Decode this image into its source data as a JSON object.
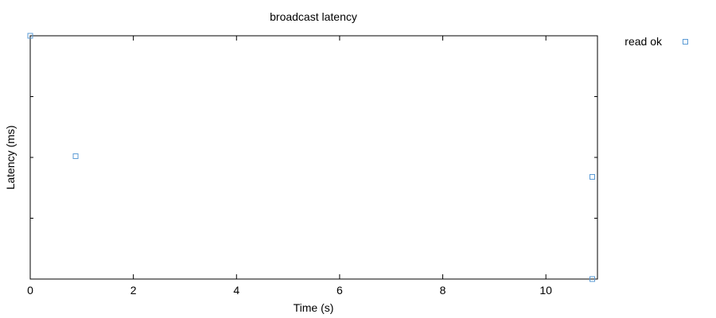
{
  "chart_data": {
    "type": "scatter",
    "title": "broadcast latency",
    "xlabel": "Time (s)",
    "ylabel": "Latency (ms)",
    "xlim": [
      0,
      11
    ],
    "ylim": [
      0,
      1
    ],
    "x_ticks": [
      0,
      2,
      4,
      6,
      8,
      10
    ],
    "y_ticks": [
      0,
      0.25,
      0.5,
      0.75,
      1.0
    ],
    "y_tick_labels_shown": false,
    "grid": false,
    "legend_placement": "outside-top-right",
    "series": [
      {
        "name": "read ok",
        "color": "#5b9bd5",
        "marker": "open-square",
        "points": [
          {
            "x": 0.0,
            "y": 1.0
          },
          {
            "x": 0.88,
            "y": 0.505
          },
          {
            "x": 10.9,
            "y": 0.42
          },
          {
            "x": 10.9,
            "y": 0.0
          }
        ]
      }
    ]
  }
}
